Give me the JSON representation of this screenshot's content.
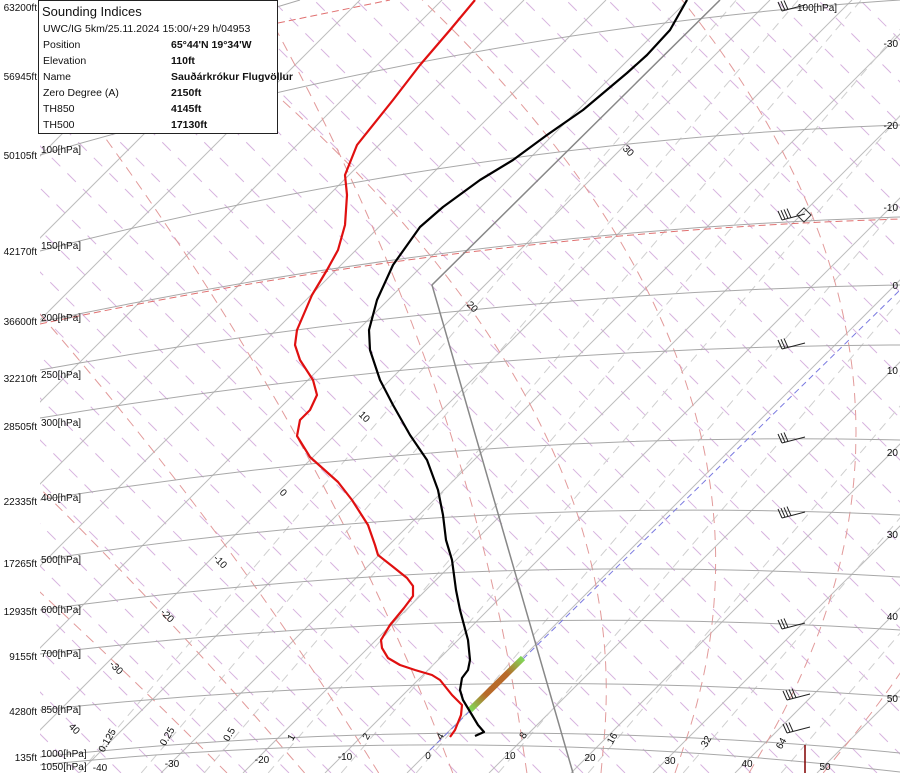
{
  "info_box": {
    "title": "Sounding Indices",
    "subtitle": "UWC/IG 5km/25.11.2024 15:00/+29 h/04953",
    "rows": [
      {
        "key": "Position",
        "value": "65°44'N 19°34'W"
      },
      {
        "key": "Elevation",
        "value": "110ft"
      },
      {
        "key": "Name",
        "value": "Sauðárkrókur Flugvöllur"
      },
      {
        "key": "Zero Degree (A)",
        "value": "2150ft"
      },
      {
        "key": "TH850",
        "value": "4145ft"
      },
      {
        "key": "TH500",
        "value": "17130ft"
      }
    ]
  },
  "chart_data": {
    "type": "line",
    "subtype": "skew-T log-P sounding diagram",
    "pressure_levels_hPa": [
      100,
      150,
      200,
      250,
      300,
      400,
      500,
      600,
      700,
      850,
      1000,
      1050
    ],
    "pressure_labels": [
      "100[hPa]",
      "150[hPa]",
      "200[hPa]",
      "250[hPa]",
      "300[hPa]",
      "400[hPa]",
      "500[hPa]",
      "600[hPa]",
      "700[hPa]",
      "850[hPa]",
      "1000[hPa]",
      "1050[hPa]"
    ],
    "top_right_pressure_label": "100[hPa]",
    "height_labels": [
      "63200ft",
      "56945ft",
      "50105ft",
      "42170ft",
      "36600ft",
      "32210ft",
      "28505ft",
      "22335ft",
      "17265ft",
      "12935ft",
      "9155ft",
      "4280ft",
      "135ft"
    ],
    "temperature_ticks_bottom": [
      "-40",
      "-30",
      "-20",
      "-10",
      "0",
      "10",
      "20",
      "30",
      "40",
      "50"
    ],
    "temperature_ticks_right": [
      "-30",
      "-20",
      "-10",
      "0",
      "10",
      "20",
      "30",
      "40",
      "50"
    ],
    "mixing_ratio_labels": [
      "0.125",
      "0.25",
      "0.5",
      "1",
      "2",
      "4",
      "8",
      "16",
      "32",
      "64"
    ],
    "adiabat_labels": [
      "40",
      "-30",
      "-20",
      "-10",
      "0",
      "10",
      "20",
      "30"
    ],
    "series": [
      {
        "color": "#e01010",
        "points_T_C": [
          {
            "p": 1000,
            "T": 3
          },
          {
            "p": 850,
            "T": 1
          },
          {
            "p": 700,
            "T": -13
          },
          {
            "p": 600,
            "T": -14
          },
          {
            "p": 500,
            "T": -28
          },
          {
            "p": 400,
            "T": -38
          },
          {
            "p": 300,
            "T": -52
          },
          {
            "p": 250,
            "T": -57
          },
          {
            "p": 200,
            "T": -63
          },
          {
            "p": 150,
            "T": -64
          },
          {
            "p": 100,
            "T": -68
          }
        ]
      },
      {
        "color": "#000000",
        "points_T_C": [
          {
            "p": 1000,
            "T": 4
          },
          {
            "p": 850,
            "T": 2
          },
          {
            "p": 700,
            "T": -6
          },
          {
            "p": 600,
            "T": -11
          },
          {
            "p": 500,
            "T": -19
          },
          {
            "p": 400,
            "T": -29
          },
          {
            "p": 300,
            "T": -43
          },
          {
            "p": 250,
            "T": -50
          },
          {
            "p": 200,
            "T": -56
          },
          {
            "p": 150,
            "T": -56
          },
          {
            "p": 100,
            "T": -58
          }
        ]
      }
    ],
    "grid": true,
    "colors": {
      "isobar": "#a8a8a8",
      "isotherm": "#bdbdbd",
      "zero_isotherm": "#7a7ae0",
      "dry_adiabat": "#d7b3df",
      "moist_adiabat": "#e29a9a",
      "mixing_ratio": "#cfcfcf",
      "parcel": "#888888",
      "tropopause": "#e07070"
    }
  }
}
